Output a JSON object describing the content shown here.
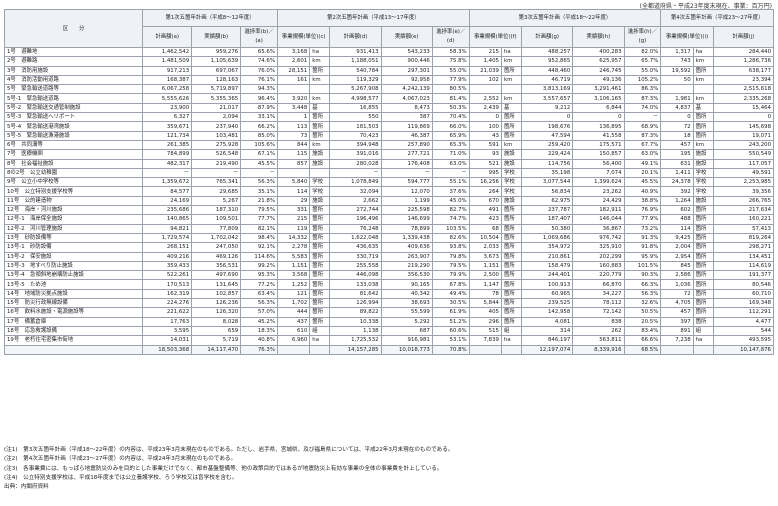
{
  "unit_note": "(全都道府県・平成23年度末現在、事業：百万円)",
  "header": {
    "category": "区　　分",
    "plan1": "第1次五箇年計画（平成8～12年度）",
    "plan2": "第2次五箇年計画（平成13～17年度）",
    "plan3": "第3次五箇年計画（平成18～22年度）",
    "plan4": "第4次五箇年計画（平成23～27年度）",
    "cols": [
      "計画額(a)",
      "実績額(b)",
      "進捗率(b)／(a)",
      "事業規模(単位)(c)",
      "計画額(d)",
      "実績額(e)",
      "進捗率(e)／(d)",
      "事業規模(単位)(f)",
      "計画額(g)",
      "実績額(h)",
      "進捗率(h)／(g)",
      "事業規模(単位)(i)",
      "計画額(j)"
    ]
  },
  "rows": [
    {
      "label": "1号　避難地",
      "p1": [
        "1,462,542",
        "959,276",
        "65.6%"
      ],
      "p2": [
        "3,168",
        "ha",
        "931,413",
        "543,233",
        "58.3%"
      ],
      "p3": [
        "215",
        "ha",
        "488,257",
        "400,283",
        "82.0%"
      ],
      "p4": [
        "1,317",
        "ha",
        "284,440"
      ]
    },
    {
      "label": "2号　避難路",
      "p1": [
        "1,481,509",
        "1,105,639",
        "74.6%"
      ],
      "p2": [
        "2,601",
        "km",
        "1,188,051",
        "900,446",
        "75.8%"
      ],
      "p3": [
        "1,405",
        "km",
        "952,865",
        "625,957",
        "65.7%"
      ],
      "p4": [
        "743",
        "km",
        "1,286,736"
      ]
    },
    {
      "label": "3号　消防用施設",
      "p1": [
        "917,213",
        "697,067",
        "76.0%"
      ],
      "p2": [
        "28,151",
        "箇所",
        "540,784",
        "297,301",
        "55.0%"
      ],
      "p3": [
        "21,039",
        "箇所",
        "448,460",
        "246,745",
        "55.0%"
      ],
      "p4": [
        "19,592",
        "箇所",
        "638,177"
      ]
    },
    {
      "label": "4号　消防活動用道路",
      "p1": [
        "168,387",
        "128,163",
        "76.1%"
      ],
      "p2": [
        "161",
        "km",
        "119,329",
        "92,958",
        "77.9%"
      ],
      "p3": [
        "102",
        "km",
        "46,719",
        "49,136",
        "105.2%"
      ],
      "p4": [
        "50",
        "km",
        "23,394"
      ]
    },
    {
      "label": "5号　緊急輸送道路等",
      "p1": [
        "6,067,258",
        "5,719,897",
        "94.3%"
      ],
      "p2": [
        "",
        "",
        "5,267,908",
        "4,242,139",
        "80.5%"
      ],
      "p3": [
        "",
        "",
        "3,813,169",
        "3,291,461",
        "86.3%"
      ],
      "p4": [
        "",
        "",
        "2,515,618"
      ]
    },
    {
      "label": "5号-1　緊急輸送道路",
      "p1": [
        "5,555,626",
        "5,355,365",
        "96.4%"
      ],
      "p2": [
        "3,920",
        "km",
        "4,998,577",
        "4,067,023",
        "81.4%"
      ],
      "p3": [
        "2,552",
        "km",
        "3,557,657",
        "3,106,165",
        "87.3%"
      ],
      "p4": [
        "1,981",
        "km",
        "2,335,268"
      ]
    },
    {
      "label": "5号-2　緊急輸送交通管制施設",
      "p1": [
        "23,900",
        "21,017",
        "87.9%"
      ],
      "p2": [
        "3,448",
        "基",
        "16,855",
        "8,473",
        "50.3%"
      ],
      "p3": [
        "2,439",
        "基",
        "9,212",
        "6,844",
        "74.0%"
      ],
      "p4": [
        "4,837",
        "基",
        "15,464"
      ]
    },
    {
      "label": "5号-3　緊急輸送ヘリポート",
      "p1": [
        "6,327",
        "2,094",
        "33.1%"
      ],
      "p2": [
        "1",
        "箇所",
        "550",
        "387",
        "70.4%"
      ],
      "p3": [
        "0",
        "箇所",
        "0",
        "0",
        "－"
      ],
      "p4": [
        "0",
        "箇所",
        "0"
      ]
    },
    {
      "label": "5号-4　緊急輸送港湾施設",
      "p1": [
        "359,671",
        "237,940",
        "66.2%"
      ],
      "p2": [
        "113",
        "箇所",
        "181,503",
        "119,869",
        "66.0%"
      ],
      "p3": [
        "100",
        "箇所",
        "198,676",
        "136,895",
        "68.9%"
      ],
      "p4": [
        "72",
        "箇所",
        "145,698"
      ]
    },
    {
      "label": "5号-5　緊急輸送漁港施設",
      "p1": [
        "121,734",
        "103,481",
        "85.0%"
      ],
      "p2": [
        "73",
        "箇所",
        "70,423",
        "46,387",
        "65.9%"
      ],
      "p3": [
        "43",
        "箇所",
        "47,594",
        "41,558",
        "87.3%"
      ],
      "p4": [
        "18",
        "箇所",
        "19,071"
      ]
    },
    {
      "label": "6号　共同溝等",
      "p1": [
        "261,385",
        "275,928",
        "105.6%"
      ],
      "p2": [
        "844",
        "km",
        "394,948",
        "257,890",
        "65.3%"
      ],
      "p3": [
        "591",
        "km",
        "259,420",
        "175,571",
        "67.7%"
      ],
      "p4": [
        "457",
        "km",
        "243,200"
      ]
    },
    {
      "label": "7号　医療機関",
      "p1": [
        "784,899",
        "526,548",
        "67.1%"
      ],
      "p2": [
        "115",
        "施設",
        "391,016",
        "277,721",
        "71.0%"
      ],
      "p3": [
        "93",
        "施設",
        "229,424",
        "150,857",
        "63.0%"
      ],
      "p4": [
        "195",
        "施設",
        "550,549"
      ]
    },
    {
      "label": "8号　社会福祉施設",
      "p1": [
        "482,317",
        "219,490",
        "45.5%"
      ],
      "p2": [
        "857",
        "施設",
        "280,028",
        "176,408",
        "63.0%"
      ],
      "p3": [
        "521",
        "施設",
        "114,756",
        "56,400",
        "49.1%"
      ],
      "p4": [
        "631",
        "施設",
        "117,057"
      ]
    },
    {
      "label": "8の2号　公立幼稚園",
      "p1": [
        "－",
        "－",
        "－"
      ],
      "p2": [
        "",
        "",
        "－",
        "－",
        "－"
      ],
      "p3": [
        "995",
        "学校",
        "35,198",
        "7,074",
        "20.1%"
      ],
      "p4": [
        "1,411",
        "学校",
        "49,591"
      ]
    },
    {
      "label": "9号　公立小中学校等",
      "p1": [
        "1,359,672",
        "765,341",
        "56.3%"
      ],
      "p2": [
        "5,840",
        "学校",
        "1,078,849",
        "594,777",
        "55.1%"
      ],
      "p3": [
        "16,256",
        "学校",
        "3,077,544",
        "1,399,624",
        "45.5%"
      ],
      "p4": [
        "24,378",
        "学校",
        "2,253,985"
      ]
    },
    {
      "label": "10号　公立特別支援学校等",
      "p1": [
        "84,577",
        "29,685",
        "35.1%"
      ],
      "p2": [
        "114",
        "学校",
        "32,094",
        "12,070",
        "37.6%"
      ],
      "p3": [
        "264",
        "学校",
        "56,834",
        "23,262",
        "40.9%"
      ],
      "p4": [
        "392",
        "学校",
        "39,356"
      ]
    },
    {
      "label": "11号　公的建造物",
      "p1": [
        "24,169",
        "5,267",
        "21.8%"
      ],
      "p2": [
        "29",
        "施設",
        "2,662",
        "1,199",
        "45.0%"
      ],
      "p3": [
        "670",
        "施設",
        "62,975",
        "24,429",
        "38.8%"
      ],
      "p4": [
        "1,264",
        "施設",
        "266,765"
      ]
    },
    {
      "label": "12号　海岸・河川施設",
      "p1": [
        "235,686",
        "187,310",
        "79.5%"
      ],
      "p2": [
        "331",
        "箇所",
        "272,744",
        "225,598",
        "82.7%"
      ],
      "p3": [
        "491",
        "箇所",
        "237,787",
        "182,911",
        "76.9%"
      ],
      "p4": [
        "602",
        "箇所",
        "217,634"
      ]
    },
    {
      "label": "12号-1　海岸保全施設",
      "p1": [
        "140,865",
        "109,501",
        "77.7%"
      ],
      "p2": [
        "215",
        "箇所",
        "196,496",
        "146,699",
        "74.7%"
      ],
      "p3": [
        "423",
        "箇所",
        "187,407",
        "146,044",
        "77.9%"
      ],
      "p4": [
        "488",
        "箇所",
        "160,221"
      ]
    },
    {
      "label": "12号-2　河川管理施設",
      "p1": [
        "94,821",
        "77,809",
        "82.1%"
      ],
      "p2": [
        "119",
        "箇所",
        "76,248",
        "78,899",
        "103.5%"
      ],
      "p3": [
        "68",
        "箇所",
        "50,380",
        "36,867",
        "73.2%"
      ],
      "p4": [
        "114",
        "箇所",
        "57,413"
      ]
    },
    {
      "label": "13号　砂防設備等",
      "p1": [
        "1,729,574",
        "1,702,042",
        "98.4%"
      ],
      "p2": [
        "14,332",
        "箇所",
        "1,622,048",
        "1,339,438",
        "82.6%"
      ],
      "p3": [
        "10,504",
        "箇所",
        "1,069,686",
        "976,742",
        "91.3%"
      ],
      "p4": [
        "9,425",
        "箇所",
        "819,264"
      ]
    },
    {
      "label": "13号-1　砂防設備",
      "p1": [
        "268,151",
        "247,050",
        "92.1%"
      ],
      "p2": [
        "2,278",
        "箇所",
        "436,635",
        "409,636",
        "93.8%"
      ],
      "p3": [
        "2,033",
        "箇所",
        "354,972",
        "325,910",
        "91.8%"
      ],
      "p4": [
        "2,004",
        "箇所",
        "298,271"
      ]
    },
    {
      "label": "13号-2　保安施設",
      "p1": [
        "409,216",
        "469,126",
        "114.6%"
      ],
      "p2": [
        "5,583",
        "箇所",
        "330,719",
        "263,907",
        "79.8%"
      ],
      "p3": [
        "3,673",
        "箇所",
        "210,861",
        "202,299",
        "95.9%"
      ],
      "p4": [
        "2,954",
        "箇所",
        "134,451"
      ]
    },
    {
      "label": "13号-3　地すべり防止施設",
      "p1": [
        "359,433",
        "356,531",
        "99.2%"
      ],
      "p2": [
        "1,151",
        "箇所",
        "255,558",
        "219,290",
        "79.5%"
      ],
      "p3": [
        "1,151",
        "箇所",
        "158,479",
        "160,883",
        "101.5%"
      ],
      "p4": [
        "845",
        "箇所",
        "114,619"
      ]
    },
    {
      "label": "13号-4　急傾斜地崩壊防止施設",
      "p1": [
        "522,261",
        "497,690",
        "95.3%"
      ],
      "p2": [
        "3,568",
        "箇所",
        "446,098",
        "356,530",
        "79.9%"
      ],
      "p3": [
        "2,500",
        "箇所",
        "244,401",
        "220,779",
        "90.3%"
      ],
      "p4": [
        "2,586",
        "箇所",
        "191,377"
      ]
    },
    {
      "label": "13号-5　ため池",
      "p1": [
        "170,513",
        "131,645",
        "77.2%"
      ],
      "p2": [
        "1,252",
        "箇所",
        "133,038",
        "90,165",
        "67.8%"
      ],
      "p3": [
        "1,147",
        "箇所",
        "100,913",
        "66,870",
        "66.3%"
      ],
      "p4": [
        "1,036",
        "箇所",
        "80,546"
      ]
    },
    {
      "label": "14号　地域防災拠点施設",
      "p1": [
        "162,319",
        "102,857",
        "63.4%"
      ],
      "p2": [
        "121",
        "箇所",
        "81,642",
        "40,342",
        "49.4%"
      ],
      "p3": [
        "78",
        "箇所",
        "60,965",
        "34,227",
        "56.3%"
      ],
      "p4": [
        "72",
        "箇所",
        "60,710"
      ]
    },
    {
      "label": "15号　防災行政無線設備",
      "p1": [
        "224,276",
        "126,236",
        "56.3%"
      ],
      "p2": [
        "1,702",
        "箇所",
        "126,994",
        "38,693",
        "30.5%"
      ],
      "p3": [
        "5,844",
        "箇所",
        "239,525",
        "78,112",
        "32.6%"
      ],
      "p4": [
        "4,705",
        "箇所",
        "169,348"
      ]
    },
    {
      "label": "16号　飲料水施設・電源施設等",
      "p1": [
        "221,622",
        "126,320",
        "57.0%"
      ],
      "p2": [
        "444",
        "箇所",
        "89,822",
        "55,599",
        "61.9%"
      ],
      "p3": [
        "405",
        "箇所",
        "142,958",
        "72,142",
        "50.5%"
      ],
      "p4": [
        "457",
        "箇所",
        "112,291"
      ]
    },
    {
      "label": "17号　備蓄倉庫",
      "p1": [
        "17,763",
        "8,028",
        "45.2%"
      ],
      "p2": [
        "437",
        "箇所",
        "10,338",
        "5,292",
        "51.2%"
      ],
      "p3": [
        "296",
        "箇所",
        "4,081",
        "838",
        "20.5%"
      ],
      "p4": [
        "397",
        "箇所",
        "4,477"
      ]
    },
    {
      "label": "18号　応急救護設備",
      "p1": [
        "3,595",
        "659",
        "18.3%"
      ],
      "p2": [
        "610",
        "組",
        "1,138",
        "687",
        "60.6%"
      ],
      "p3": [
        "515",
        "組",
        "314",
        "262",
        "83.4%"
      ],
      "p4": [
        "891",
        "組",
        "544"
      ]
    },
    {
      "label": "19号　老朽住宅密集市街地",
      "p1": [
        "14,031",
        "5,719",
        "40.8%"
      ],
      "p2": [
        "6,960",
        "ha",
        "1,725,532",
        "916,981",
        "53.1%"
      ],
      "p3": [
        "7,839",
        "ha",
        "846,197",
        "563,811",
        "66.6%"
      ],
      "p4": [
        "7,238",
        "ha",
        "493,595"
      ]
    }
  ],
  "total": {
    "label": "",
    "p1": [
      "18,503,368",
      "14,117,470",
      "76.3%"
    ],
    "p2": [
      "",
      "",
      "14,157,285",
      "10,018,773",
      "70.8%"
    ],
    "p3": [
      "",
      "",
      "12,197,074",
      "8,339,916",
      "68.5%"
    ],
    "p4": [
      "",
      "",
      "10,147,876"
    ]
  },
  "notes": [
    "(注1)　第3次五箇年計画（平成18～22年度）の内容は、平成23年3月末現在のものである。ただし、岩手県、宮城県、及び福島県については、平成22年3月末現在のものである。",
    "(注2)　第4次五箇年計画（平成23～27年度）の内容は、平成24年3月末現在のものである。",
    "(注3)　各事業費には、もっぱら地震防災のみを目的とした事業だけでなく、都市基盤整備等、他の政策目的ではあるが地震防災上有効な事業の全体の事業費を計上している。",
    "(注4)　公立特別支援学校は、平成18年度までは公立養護学校、ろう学校又は盲学校を含む。",
    "出典：内閣府資料"
  ]
}
